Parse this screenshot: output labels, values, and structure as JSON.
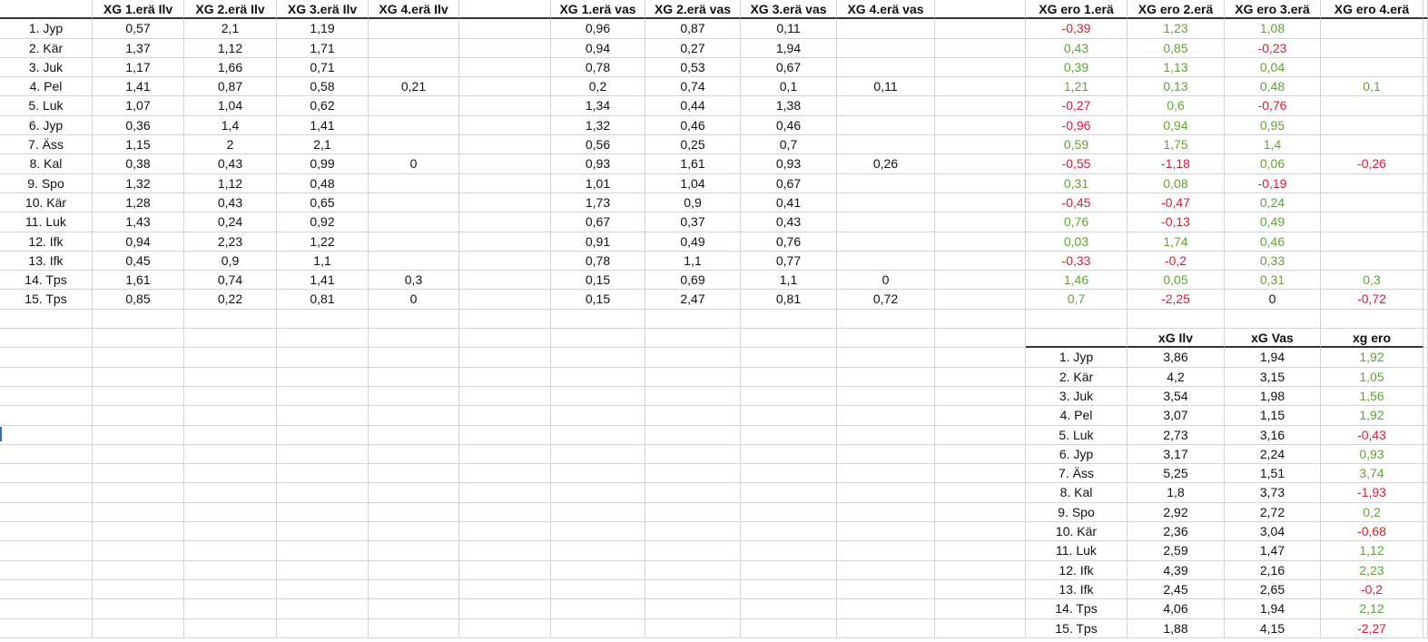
{
  "colors": {
    "positive": "#5fa435",
    "negative": "#e3172f",
    "gridline": "#d4d4d4"
  },
  "headers": {
    "ilv": [
      "XG 1.erä Ilv",
      "XG 2.erä Ilv",
      "XG 3.erä Ilv",
      "XG 4.erä Ilv"
    ],
    "vas": [
      "XG 1.erä vas",
      "XG 2.erä vas",
      "XG 3.erä vas",
      "XG 4.erä vas"
    ],
    "ero": [
      "XG ero 1.erä",
      "XG ero 2.erä",
      "XG ero 3.erä",
      "XG ero 4.erä"
    ]
  },
  "rows": [
    {
      "team": "1. Jyp",
      "ilv": [
        "0,57",
        "2,1",
        "1,19",
        ""
      ],
      "vas": [
        "0,96",
        "0,87",
        "0,11",
        ""
      ],
      "ero": [
        "-0,39",
        "1,23",
        "1,08",
        ""
      ]
    },
    {
      "team": "2. Kär",
      "ilv": [
        "1,37",
        "1,12",
        "1,71",
        ""
      ],
      "vas": [
        "0,94",
        "0,27",
        "1,94",
        ""
      ],
      "ero": [
        "0,43",
        "0,85",
        "-0,23",
        ""
      ]
    },
    {
      "team": "3. Juk",
      "ilv": [
        "1,17",
        "1,66",
        "0,71",
        ""
      ],
      "vas": [
        "0,78",
        "0,53",
        "0,67",
        ""
      ],
      "ero": [
        "0,39",
        "1,13",
        "0,04",
        ""
      ]
    },
    {
      "team": "4. Pel",
      "ilv": [
        "1,41",
        "0,87",
        "0,58",
        "0,21"
      ],
      "vas": [
        "0,2",
        "0,74",
        "0,1",
        "0,11"
      ],
      "ero": [
        "1,21",
        "0,13",
        "0,48",
        "0,1"
      ]
    },
    {
      "team": "5. Luk",
      "ilv": [
        "1,07",
        "1,04",
        "0,62",
        ""
      ],
      "vas": [
        "1,34",
        "0,44",
        "1,38",
        ""
      ],
      "ero": [
        "-0,27",
        "0,6",
        "-0,76",
        ""
      ]
    },
    {
      "team": "6. Jyp",
      "ilv": [
        "0,36",
        "1,4",
        "1,41",
        ""
      ],
      "vas": [
        "1,32",
        "0,46",
        "0,46",
        ""
      ],
      "ero": [
        "-0,96",
        "0,94",
        "0,95",
        ""
      ]
    },
    {
      "team": "7. Äss",
      "ilv": [
        "1,15",
        "2",
        "2,1",
        ""
      ],
      "vas": [
        "0,56",
        "0,25",
        "0,7",
        ""
      ],
      "ero": [
        "0,59",
        "1,75",
        "1,4",
        ""
      ]
    },
    {
      "team": "8. Kal",
      "ilv": [
        "0,38",
        "0,43",
        "0,99",
        "0"
      ],
      "vas": [
        "0,93",
        "1,61",
        "0,93",
        "0,26"
      ],
      "ero": [
        "-0,55",
        "-1,18",
        "0,06",
        "-0,26"
      ]
    },
    {
      "team": "9. Spo",
      "ilv": [
        "1,32",
        "1,12",
        "0,48",
        ""
      ],
      "vas": [
        "1,01",
        "1,04",
        "0,67",
        ""
      ],
      "ero": [
        "0,31",
        "0,08",
        "-0,19",
        ""
      ]
    },
    {
      "team": "10. Kär",
      "ilv": [
        "1,28",
        "0,43",
        "0,65",
        ""
      ],
      "vas": [
        "1,73",
        "0,9",
        "0,41",
        ""
      ],
      "ero": [
        "-0,45",
        "-0,47",
        "0,24",
        ""
      ]
    },
    {
      "team": "11. Luk",
      "ilv": [
        "1,43",
        "0,24",
        "0,92",
        ""
      ],
      "vas": [
        "0,67",
        "0,37",
        "0,43",
        ""
      ],
      "ero": [
        "0,76",
        "-0,13",
        "0,49",
        ""
      ]
    },
    {
      "team": "12. Ifk",
      "ilv": [
        "0,94",
        "2,23",
        "1,22",
        ""
      ],
      "vas": [
        "0,91",
        "0,49",
        "0,76",
        ""
      ],
      "ero": [
        "0,03",
        "1,74",
        "0,46",
        ""
      ]
    },
    {
      "team": "13. Ifk",
      "ilv": [
        "0,45",
        "0,9",
        "1,1",
        ""
      ],
      "vas": [
        "0,78",
        "1,1",
        "0,77",
        ""
      ],
      "ero": [
        "-0,33",
        "-0,2",
        "0,33",
        ""
      ]
    },
    {
      "team": "14. Tps",
      "ilv": [
        "1,61",
        "0,74",
        "1,41",
        "0,3"
      ],
      "vas": [
        "0,15",
        "0,69",
        "1,1",
        "0"
      ],
      "ero": [
        "1,46",
        "0,05",
        "0,31",
        "0,3"
      ]
    },
    {
      "team": "15. Tps",
      "ilv": [
        "0,85",
        "0,22",
        "0,81",
        "0"
      ],
      "vas": [
        "0,15",
        "2,47",
        "0,81",
        "0,72"
      ],
      "ero": [
        "0,7",
        "-2,25",
        "0",
        "-0,72"
      ]
    }
  ],
  "summary": {
    "headers": [
      "xG Ilv",
      "xG Vas",
      "xg ero"
    ],
    "rows": [
      [
        "1. Jyp",
        "3,86",
        "1,94",
        "1,92"
      ],
      [
        "2. Kär",
        "4,2",
        "3,15",
        "1,05"
      ],
      [
        "3. Juk",
        "3,54",
        "1,98",
        "1,56"
      ],
      [
        "4. Pel",
        "3,07",
        "1,15",
        "1,92"
      ],
      [
        "5. Luk",
        "2,73",
        "3,16",
        "-0,43"
      ],
      [
        "6. Jyp",
        "3,17",
        "2,24",
        "0,93"
      ],
      [
        "7. Äss",
        "5,25",
        "1,51",
        "3,74"
      ],
      [
        "8. Kal",
        "1,8",
        "3,73",
        "-1,93"
      ],
      [
        "9. Spo",
        "2,92",
        "2,72",
        "0,2"
      ],
      [
        "10. Kär",
        "2,36",
        "3,04",
        "-0,68"
      ],
      [
        "11. Luk",
        "2,59",
        "1,47",
        "1,12"
      ],
      [
        "12. Ifk",
        "4,39",
        "2,16",
        "2,23"
      ],
      [
        "13. Ifk",
        "2,45",
        "2,65",
        "-0,2"
      ],
      [
        "14. Tps",
        "4,06",
        "1,94",
        "2,12"
      ],
      [
        "15. Tps",
        "1,88",
        "4,15",
        "-2,27"
      ]
    ]
  }
}
